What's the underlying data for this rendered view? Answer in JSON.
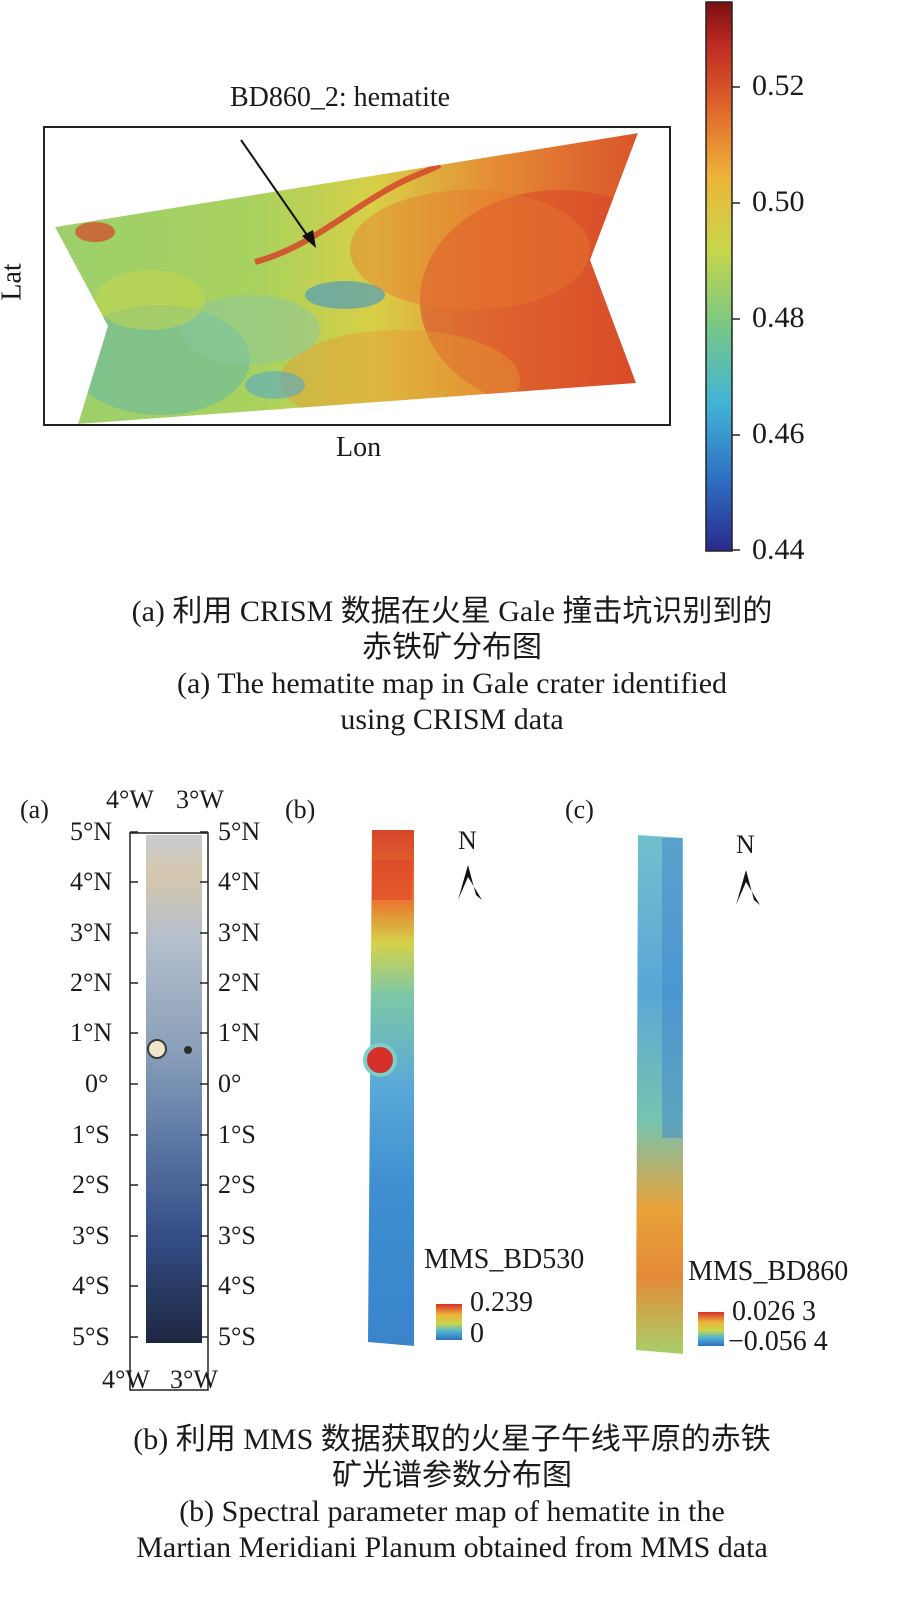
{
  "panel_a": {
    "annotation": "BD860_2: hematite",
    "x_axis_label": "Lon",
    "y_axis_label": "Lat",
    "colorbar": {
      "ticks": [
        "0.52",
        "0.50",
        "0.48",
        "0.46",
        "0.44"
      ],
      "range": [
        0.44,
        0.535
      ],
      "colormap": [
        "#2a2a8c",
        "#2f6fc2",
        "#42b4d6",
        "#74c68a",
        "#c8d64a",
        "#ecb43a",
        "#e06a2a",
        "#c02a24",
        "#7a1010"
      ]
    },
    "caption_zh": [
      "(a) 利用 CRISM 数据在火星 Gale 撞击坑识别到的",
      "赤铁矿分布图"
    ],
    "caption_en": [
      "(a) The hematite map in Gale crater identified",
      "using CRISM data"
    ]
  },
  "panel_b": {
    "sub_a": {
      "label": "(a)",
      "top_ticks": [
        "4°W",
        "3°W"
      ],
      "bottom_ticks": [
        "4°W",
        "3°W"
      ],
      "lat_ticks": [
        "5°N",
        "4°N",
        "3°N",
        "2°N",
        "1°N",
        "0°",
        "1°S",
        "2°S",
        "3°S",
        "4°S",
        "5°S"
      ]
    },
    "sub_b": {
      "label": "(b)",
      "north": "N",
      "legend_title": "MMS_BD530",
      "legend_max": "0.239",
      "legend_min": "0"
    },
    "sub_c": {
      "label": "(c)",
      "north": "N",
      "legend_title": "MMS_BD860",
      "legend_max": "0.026 3",
      "legend_min": "−0.056 4"
    },
    "caption_zh": [
      "(b) 利用 MMS 数据获取的火星子午线平原的赤铁",
      "矿光谱参数分布图"
    ],
    "caption_en": [
      "(b) Spectral parameter map of hematite in the",
      "Martian Meridiani Planum obtained from MMS data"
    ]
  }
}
